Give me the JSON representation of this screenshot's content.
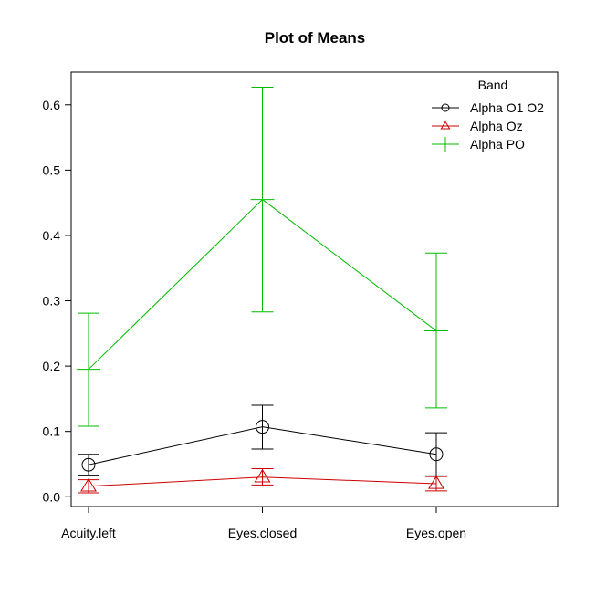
{
  "chart_data": {
    "type": "line",
    "title": "Plot of Means",
    "xlabel": "",
    "ylabel": "",
    "categories": [
      "Acuity.left",
      "Eyes.closed",
      "Eyes.open"
    ],
    "ylim": [
      -0.015,
      0.65
    ],
    "yticks": [
      "0.0",
      "0.1",
      "0.2",
      "0.3",
      "0.4",
      "0.5",
      "0.6"
    ],
    "legend": {
      "title": "Band",
      "placement": "top-right"
    },
    "series": [
      {
        "name": "Alpha O1 O2",
        "color": "#000000",
        "marker": "circle",
        "values": [
          0.049,
          0.107,
          0.065
        ],
        "lower": [
          0.033,
          0.073,
          0.032
        ],
        "upper": [
          0.065,
          0.14,
          0.098
        ]
      },
      {
        "name": "Alpha Oz",
        "color": "#cc0000",
        "marker": "triangle",
        "values": [
          0.016,
          0.03,
          0.02
        ],
        "lower": [
          0.006,
          0.018,
          0.009
        ],
        "upper": [
          0.026,
          0.043,
          0.031
        ]
      },
      {
        "name": "Alpha PO",
        "color": "#00bb00",
        "marker": "plus",
        "values": [
          0.195,
          0.455,
          0.254
        ],
        "lower": [
          0.108,
          0.283,
          0.136
        ],
        "upper": [
          0.281,
          0.627,
          0.373
        ]
      }
    ]
  }
}
